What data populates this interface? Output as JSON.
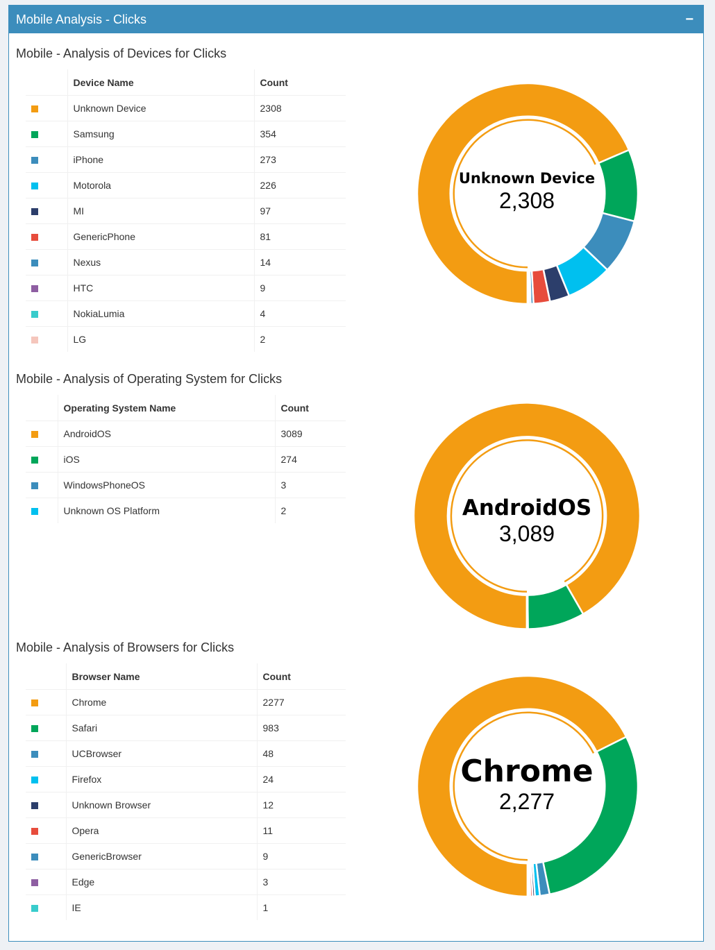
{
  "panel": {
    "title": "Mobile Analysis - Clicks",
    "collapse_label": "−"
  },
  "sections": [
    {
      "title": "Mobile - Analysis of Devices for Clicks",
      "col_name": "Device Name",
      "col_count": "Count",
      "rows": [
        {
          "name": "Unknown Device",
          "count": "2308",
          "color": "#f39c12"
        },
        {
          "name": "Samsung",
          "count": "354",
          "color": "#00a65a"
        },
        {
          "name": "iPhone",
          "count": "273",
          "color": "#3c8dbc"
        },
        {
          "name": "Motorola",
          "count": "226",
          "color": "#00c0ef"
        },
        {
          "name": "MI",
          "count": "97",
          "color": "#2c3e6b"
        },
        {
          "name": "GenericPhone",
          "count": "81",
          "color": "#e74c3c"
        },
        {
          "name": "Nexus",
          "count": "14",
          "color": "#3c8dbc"
        },
        {
          "name": "HTC",
          "count": "9",
          "color": "#8e5ea2"
        },
        {
          "name": "NokiaLumia",
          "count": "4",
          "color": "#39cccc"
        },
        {
          "name": "LG",
          "count": "2",
          "color": "#f5c6bc"
        }
      ],
      "center_name": "Unknown Device",
      "center_value": "2,308"
    },
    {
      "title": "Mobile - Analysis of Operating System for Clicks",
      "col_name": "Operating System Name",
      "col_count": "Count",
      "rows": [
        {
          "name": "AndroidOS",
          "count": "3089",
          "color": "#f39c12"
        },
        {
          "name": "iOS",
          "count": "274",
          "color": "#00a65a"
        },
        {
          "name": "WindowsPhoneOS",
          "count": "3",
          "color": "#3c8dbc"
        },
        {
          "name": "Unknown OS Platform",
          "count": "2",
          "color": "#00c0ef"
        }
      ],
      "center_name": "AndroidOS",
      "center_value": "3,089"
    },
    {
      "title": "Mobile - Analysis of Browsers for Clicks",
      "col_name": "Browser Name",
      "col_count": "Count",
      "rows": [
        {
          "name": "Chrome",
          "count": "2277",
          "color": "#f39c12"
        },
        {
          "name": "Safari",
          "count": "983",
          "color": "#00a65a"
        },
        {
          "name": "UCBrowser",
          "count": "48",
          "color": "#3c8dbc"
        },
        {
          "name": "Firefox",
          "count": "24",
          "color": "#00c0ef"
        },
        {
          "name": "Unknown Browser",
          "count": "12",
          "color": "#2c3e6b"
        },
        {
          "name": "Opera",
          "count": "11",
          "color": "#e74c3c"
        },
        {
          "name": "GenericBrowser",
          "count": "9",
          "color": "#3c8dbc"
        },
        {
          "name": "Edge",
          "count": "3",
          "color": "#8e5ea2"
        },
        {
          "name": "IE",
          "count": "1",
          "color": "#39cccc"
        }
      ],
      "center_name": "Chrome",
      "center_value": "2,277"
    }
  ]
}
